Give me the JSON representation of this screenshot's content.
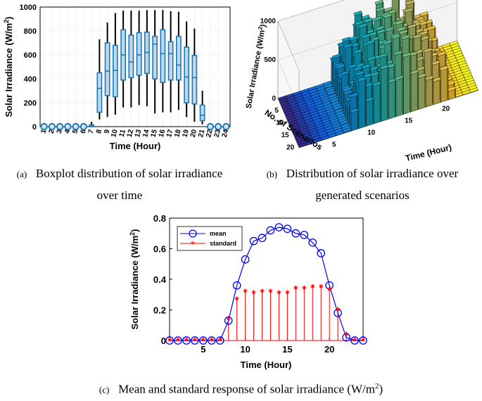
{
  "chart_data": [
    {
      "id": "a",
      "type": "boxplot",
      "xlabel": "Time (Hour)",
      "ylabel": "Solar Irradiance (W/m",
      "ylabel_sup": "2",
      "ylabel_close": ")",
      "ylim": [
        0,
        1000
      ],
      "yticks": [
        0,
        200,
        400,
        600,
        800,
        1000
      ],
      "categories": [
        "1",
        "2",
        "3",
        "4",
        "5",
        "6",
        "7",
        "8",
        "9",
        "10",
        "11",
        "12",
        "13",
        "14",
        "15",
        "16",
        "17",
        "18",
        "19",
        "20",
        "21",
        "22",
        "23",
        "24"
      ],
      "boxes": [
        {
          "hour": 1,
          "min": 0,
          "q1": 0,
          "median": 0,
          "q3": 0,
          "max": 0
        },
        {
          "hour": 2,
          "min": 0,
          "q1": 0,
          "median": 0,
          "q3": 0,
          "max": 0
        },
        {
          "hour": 3,
          "min": 0,
          "q1": 0,
          "median": 0,
          "q3": 0,
          "max": 0
        },
        {
          "hour": 4,
          "min": 0,
          "q1": 0,
          "median": 0,
          "q3": 0,
          "max": 0
        },
        {
          "hour": 5,
          "min": 0,
          "q1": 0,
          "median": 0,
          "q3": 0,
          "max": 0
        },
        {
          "hour": 6,
          "min": 0,
          "q1": 0,
          "median": 0,
          "q3": 0,
          "max": 0
        },
        {
          "hour": 7,
          "min": 0,
          "q1": 0,
          "median": 5,
          "q3": 15,
          "max": 40
        },
        {
          "hour": 8,
          "min": 60,
          "q1": 120,
          "median": 320,
          "q3": 450,
          "max": 730
        },
        {
          "hour": 9,
          "min": 80,
          "q1": 260,
          "median": 465,
          "q3": 700,
          "max": 870
        },
        {
          "hour": 10,
          "min": 100,
          "q1": 250,
          "median": 470,
          "q3": 680,
          "max": 950
        },
        {
          "hour": 11,
          "min": 160,
          "q1": 390,
          "median": 600,
          "q3": 810,
          "max": 970
        },
        {
          "hour": 12,
          "min": 160,
          "q1": 410,
          "median": 540,
          "q3": 765,
          "max": 970
        },
        {
          "hour": 13,
          "min": 180,
          "q1": 430,
          "median": 600,
          "q3": 785,
          "max": 970
        },
        {
          "hour": 14,
          "min": 170,
          "q1": 445,
          "median": 620,
          "q3": 790,
          "max": 975
        },
        {
          "hour": 15,
          "min": 110,
          "q1": 400,
          "median": 690,
          "q3": 755,
          "max": 975
        },
        {
          "hour": 16,
          "min": 120,
          "q1": 370,
          "median": 610,
          "q3": 810,
          "max": 975
        },
        {
          "hour": 17,
          "min": 120,
          "q1": 390,
          "median": 610,
          "q3": 710,
          "max": 965
        },
        {
          "hour": 18,
          "min": 140,
          "q1": 390,
          "median": 515,
          "q3": 755,
          "max": 960
        },
        {
          "hour": 19,
          "min": 80,
          "q1": 200,
          "median": 415,
          "q3": 665,
          "max": 880
        },
        {
          "hour": 20,
          "min": 40,
          "q1": 190,
          "median": 410,
          "q3": 595,
          "max": 820
        },
        {
          "hour": 21,
          "min": 20,
          "q1": 50,
          "median": 95,
          "q3": 180,
          "max": 300
        },
        {
          "hour": 22,
          "min": 0,
          "q1": 0,
          "median": 0,
          "q3": 0,
          "max": 0
        },
        {
          "hour": 23,
          "min": 0,
          "q1": 0,
          "median": 0,
          "q3": 0,
          "max": 0
        },
        {
          "hour": 24,
          "min": 0,
          "q1": 0,
          "median": 0,
          "q3": 0,
          "max": 0
        }
      ]
    },
    {
      "id": "b",
      "type": "bar3d",
      "xlabel": "Time (Hour)",
      "ylabel": "No. of Scenarios",
      "zlabel": "Solar Irradiance (W/m",
      "zlabel_sup": "2",
      "zlabel_close": ")",
      "zlim": [
        0,
        1000
      ],
      "zticks": [
        0,
        500,
        1000
      ],
      "xticks": [
        5,
        10,
        15,
        20
      ],
      "yticks": [
        5,
        10,
        15,
        20
      ],
      "hours": 24,
      "scenarios": 20,
      "profile_by_hour": [
        0,
        0,
        0,
        0,
        0,
        0,
        10,
        300,
        450,
        470,
        600,
        580,
        610,
        640,
        650,
        620,
        600,
        540,
        420,
        380,
        110,
        0,
        0,
        0
      ]
    },
    {
      "id": "c",
      "type": "line_stem",
      "xlabel": "Time (Hour)",
      "ylabel": "Solar Irradiance (W/m",
      "ylabel_sup": "2",
      "ylabel_close": ")",
      "xlim": [
        1,
        24
      ],
      "ylim": [
        0,
        0.8
      ],
      "xticks": [
        5,
        10,
        15,
        20
      ],
      "yticks": [
        0,
        0.2,
        0.4,
        0.6,
        0.8
      ],
      "x": [
        1,
        2,
        3,
        4,
        5,
        6,
        7,
        8,
        9,
        10,
        11,
        12,
        13,
        14,
        15,
        16,
        17,
        18,
        19,
        20,
        21,
        22,
        23,
        24
      ],
      "series": [
        {
          "name": "mean",
          "color": "#0000ff",
          "marker": "circle",
          "values": [
            0,
            0,
            0,
            0,
            0,
            0,
            0,
            0.13,
            0.36,
            0.53,
            0.65,
            0.67,
            0.72,
            0.74,
            0.73,
            0.7,
            0.69,
            0.64,
            0.57,
            0.36,
            0.18,
            0.02,
            0,
            0
          ]
        },
        {
          "name": "standard",
          "color": "#ff0000",
          "marker": "star",
          "values": [
            0,
            0,
            0,
            0,
            0,
            0,
            0,
            0.14,
            0.27,
            0.32,
            0.31,
            0.32,
            0.32,
            0.31,
            0.31,
            0.34,
            0.34,
            0.35,
            0.35,
            0.33,
            0.2,
            0.04,
            0,
            0
          ]
        }
      ],
      "legend_position": "top-left"
    }
  ],
  "captions": {
    "a_tag": "(a)",
    "a_line1": "Boxplot distribution of solar irradiance",
    "a_line2": "over time",
    "b_tag": "(b)",
    "b_line1": "Distribution of solar irradiance over",
    "b_line2": "generated scenarios",
    "c_tag": "(c)",
    "c_text": "Mean and standard response of solar irradiance (W/m",
    "c_sup": "2",
    "c_close": ")"
  },
  "colors": {
    "box_fill": "#bcd9f0",
    "box_edge": "#1f77b4",
    "whisker": "#000000",
    "mean_line": "#0000ff",
    "std_marker": "#ff0000"
  }
}
